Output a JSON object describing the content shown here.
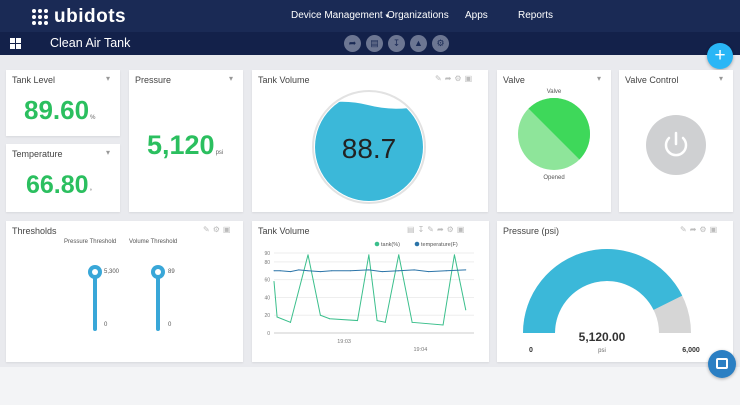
{
  "brand": {
    "logo_text": "ubidots"
  },
  "nav": {
    "items": [
      {
        "label": "Device Management",
        "has_caret": true
      },
      {
        "label": "Organizations"
      },
      {
        "label": "Apps"
      },
      {
        "label": "Reports"
      }
    ]
  },
  "dashboard": {
    "title": "Clean Air Tank",
    "add_label": "+"
  },
  "widgets": {
    "tank_level": {
      "title": "Tank Level",
      "value": "89.60",
      "unit": "%"
    },
    "temperature": {
      "title": "Temperature",
      "value": "66.80",
      "unit": "°"
    },
    "pressure": {
      "title": "Pressure",
      "value": "5,120",
      "unit": "psi"
    },
    "tank_volume_gauge": {
      "title": "Tank Volume",
      "value": "88.7",
      "level": 0.887
    },
    "valve": {
      "title": "Valve",
      "top_label": "Valve",
      "state_label": "Opened"
    },
    "valve_control": {
      "title": "Valve Control"
    },
    "thresholds": {
      "title": "Thresholds",
      "sliders": [
        {
          "label": "Pressure Threshold",
          "max_label": "5,300",
          "min_label": "0"
        },
        {
          "label": "Volume Threshold",
          "max_label": "89",
          "min_label": "0"
        }
      ]
    },
    "tank_volume_chart": {
      "title": "Tank Volume"
    },
    "pressure_gauge": {
      "title": "Pressure (psi)",
      "value": "5,120.00",
      "unit": "psi",
      "min_label": "0",
      "max_label": "6,000",
      "min": 0,
      "max": 6000,
      "current": 5120
    }
  },
  "chart_data": {
    "type": "line",
    "title": "",
    "xlabel": "",
    "ylabel": "",
    "ylim": [
      0,
      90
    ],
    "xlim": [
      0,
      19.4
    ],
    "yticks": [
      0,
      20,
      40,
      60,
      80,
      90
    ],
    "xticks": [
      {
        "x": 6.8,
        "label": "19:03"
      },
      {
        "x": 14.2,
        "label": "19:04"
      }
    ],
    "legend_position": "top-right",
    "series": [
      {
        "name": "tank(%)",
        "color": "#3bbf8c",
        "x": [
          0,
          0.3,
          1.6,
          3.3,
          4.5,
          5.4,
          8.1,
          9.2,
          10.0,
          10.8,
          12.1,
          13.4,
          16.4,
          17.5,
          18.6
        ],
        "y": [
          58,
          18,
          12,
          88,
          20,
          16,
          14,
          88,
          14,
          12,
          88,
          12,
          9,
          88,
          26
        ]
      },
      {
        "name": "temperature(F)",
        "color": "#2b74a8",
        "x": [
          0,
          0.6,
          1.6,
          2.4,
          3.3,
          4.5,
          5.6,
          7.4,
          9.2,
          10.5,
          12.1,
          13.6,
          15.0,
          16.7,
          18.6
        ],
        "y": [
          70,
          70,
          69,
          71,
          70,
          69,
          70,
          70,
          71,
          69,
          70,
          71,
          69,
          70,
          71
        ]
      }
    ]
  }
}
